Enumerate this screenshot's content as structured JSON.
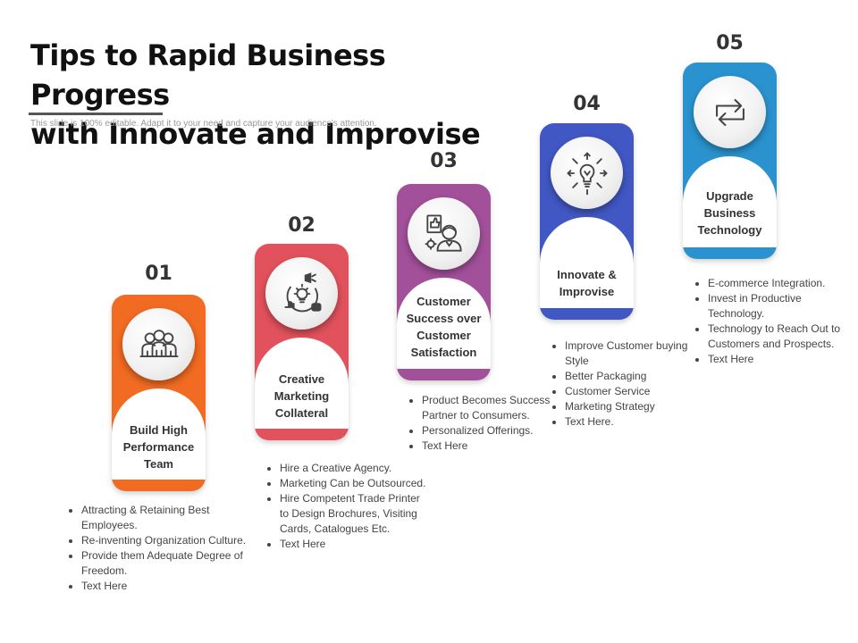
{
  "header": {
    "title_line1": "Tips to Rapid Business Progress",
    "title_line2": "with Innovate and Improvise",
    "subtitle": "This slide is 100% editable. Adapt it to your need and capture your audience's attention."
  },
  "steps": [
    {
      "number": "01",
      "color": "#F26B22",
      "icon": "team-icon",
      "label": "Build High Performance Team",
      "bullets": [
        "Attracting & Retaining Best Employees.",
        "Re-inventing Organization Culture.",
        "Provide them Adequate Degree of Freedom.",
        "Text Here"
      ]
    },
    {
      "number": "02",
      "color": "#E2525C",
      "icon": "marketing-bulb-icon",
      "label": "Creative Marketing Collateral",
      "bullets": [
        "Hire a Creative Agency.",
        "Marketing Can be Outsourced.",
        "Hire Competent Trade Printer to Design Brochures, Visiting Cards, Catalogues Etc.",
        "Text Here"
      ]
    },
    {
      "number": "03",
      "color": "#A3509A",
      "icon": "customer-success-icon",
      "label": "Customer Success over Customer Satisfaction",
      "bullets": [
        "Product Becomes Success Partner to Consumers.",
        "Personalized Offerings.",
        "Text Here"
      ]
    },
    {
      "number": "04",
      "color": "#4158C4",
      "icon": "innovation-bulb-icon",
      "label": "Innovate & Improvise",
      "bullets": [
        "Improve Customer buying Style",
        "Better Packaging",
        "Customer Service",
        "Marketing Strategy",
        "Text Here."
      ]
    },
    {
      "number": "05",
      "color": "#2A93CF",
      "icon": "upgrade-arrows-icon",
      "label": "Upgrade Business Technology",
      "bullets": [
        "E-commerce Integration.",
        "Invest in Productive Technology.",
        "Technology to Reach Out to Customers and Prospects.",
        "Text Here"
      ]
    }
  ]
}
